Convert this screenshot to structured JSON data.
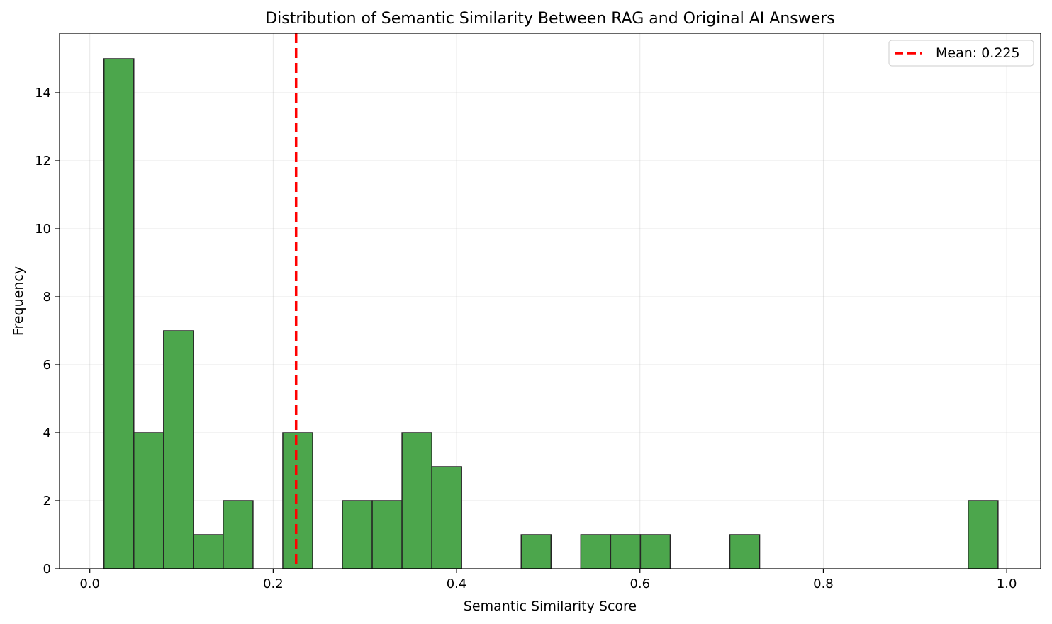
{
  "chart_data": {
    "type": "bar",
    "title": "Distribution of Semantic Similarity Between RAG and Original AI Answers",
    "xlabel": "Semantic Similarity Score",
    "ylabel": "Frequency",
    "xlim": [
      -0.033,
      1.037
    ],
    "ylim": [
      0,
      15.75
    ],
    "xticks": [
      "0.0",
      "0.2",
      "0.4",
      "0.6",
      "0.8",
      "1.0"
    ],
    "yticks": [
      "0",
      "2",
      "4",
      "6",
      "8",
      "10",
      "12",
      "14"
    ],
    "grid": true,
    "bins": [
      {
        "start": 0.0155,
        "end": 0.048,
        "count": 15
      },
      {
        "start": 0.048,
        "end": 0.0805,
        "count": 4
      },
      {
        "start": 0.0805,
        "end": 0.113,
        "count": 7
      },
      {
        "start": 0.113,
        "end": 0.1455,
        "count": 1
      },
      {
        "start": 0.1455,
        "end": 0.178,
        "count": 2
      },
      {
        "start": 0.2105,
        "end": 0.243,
        "count": 4
      },
      {
        "start": 0.2755,
        "end": 0.308,
        "count": 2
      },
      {
        "start": 0.308,
        "end": 0.3405,
        "count": 2
      },
      {
        "start": 0.3405,
        "end": 0.373,
        "count": 4
      },
      {
        "start": 0.373,
        "end": 0.4055,
        "count": 3
      },
      {
        "start": 0.4705,
        "end": 0.503,
        "count": 1
      },
      {
        "start": 0.5355,
        "end": 0.568,
        "count": 1
      },
      {
        "start": 0.568,
        "end": 0.6005,
        "count": 1
      },
      {
        "start": 0.6005,
        "end": 0.633,
        "count": 1
      },
      {
        "start": 0.698,
        "end": 0.7305,
        "count": 1
      },
      {
        "start": 0.958,
        "end": 0.9905,
        "count": 2
      }
    ],
    "bar_color": "#4ca64c",
    "bar_edge_color": "#262626",
    "mean": {
      "value": 0.225,
      "label": "Mean: 0.225",
      "color": "#ff0000"
    },
    "legend": {
      "placement": "top-right",
      "entries": [
        "Mean: 0.225"
      ]
    }
  }
}
